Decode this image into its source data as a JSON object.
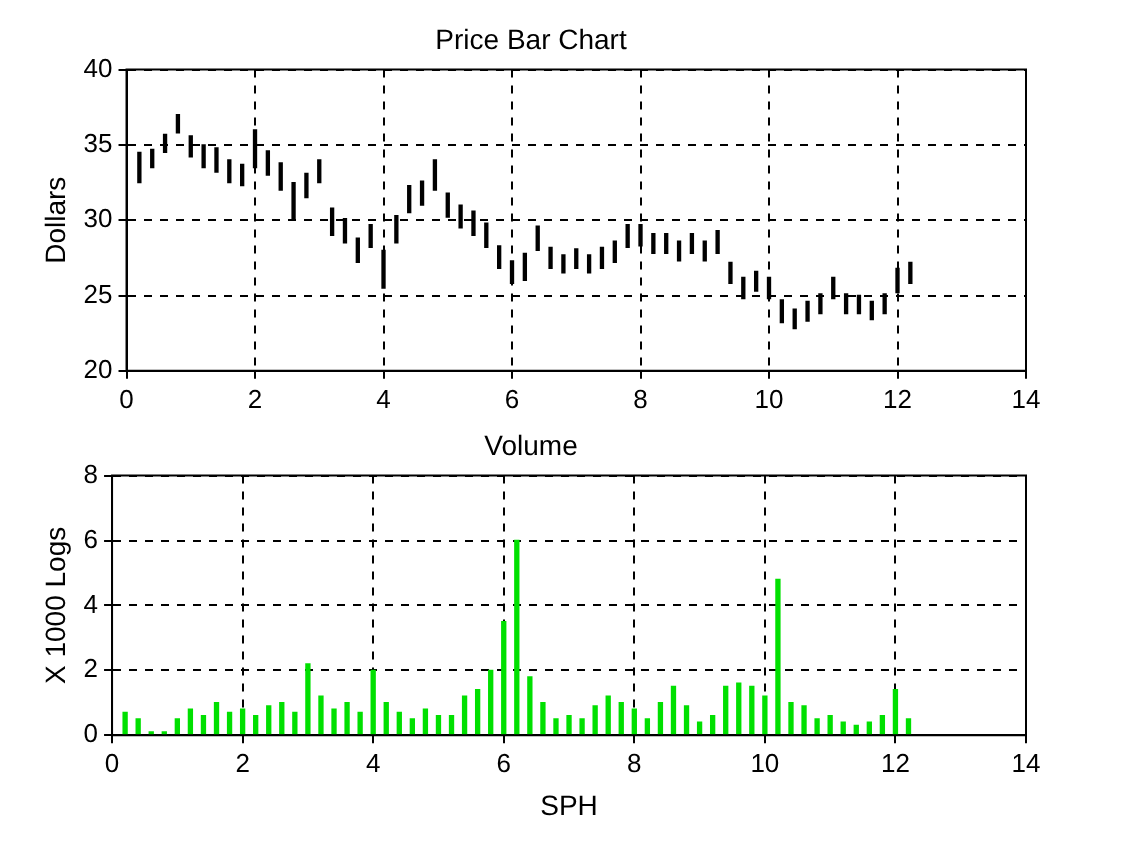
{
  "chart_data": [
    {
      "type": "bar",
      "title": "Price Bar Chart",
      "ylabel": "Dollars",
      "color": "#000000",
      "x": [
        0.2,
        0.4,
        0.6,
        0.8,
        1.0,
        1.2,
        1.4,
        1.6,
        1.8,
        2.0,
        2.2,
        2.4,
        2.6,
        2.8,
        3.0,
        3.2,
        3.4,
        3.6,
        3.8,
        4.0,
        4.2,
        4.4,
        4.6,
        4.8,
        5.0,
        5.2,
        5.4,
        5.6,
        5.8,
        6.0,
        6.2,
        6.4,
        6.6,
        6.8,
        7.0,
        7.2,
        7.4,
        7.6,
        7.8,
        8.0,
        8.2,
        8.4,
        8.6,
        8.8,
        9.0,
        9.2,
        9.4,
        9.6,
        9.8,
        10.0,
        10.2,
        10.4,
        10.6,
        10.8,
        11.0,
        11.2,
        11.4,
        11.6,
        11.8,
        12.0,
        12.2
      ],
      "base": [
        32.5,
        33.5,
        34.5,
        35.8,
        34.2,
        33.5,
        33.2,
        32.5,
        32.3,
        33.5,
        33.0,
        32.0,
        30.0,
        31.5,
        32.5,
        29.0,
        28.5,
        27.2,
        28.2,
        25.5,
        28.5,
        30.5,
        31.0,
        32.0,
        30.2,
        29.5,
        29.0,
        28.2,
        26.8,
        25.8,
        26.0,
        28.0,
        26.8,
        26.5,
        26.8,
        26.5,
        26.8,
        27.2,
        28.2,
        28.3,
        27.8,
        27.8,
        27.3,
        27.8,
        27.3,
        27.8,
        25.8,
        24.8,
        25.3,
        24.8,
        23.2,
        22.8,
        23.3,
        23.8,
        24.8,
        23.8,
        23.8,
        23.4,
        23.8,
        25.2,
        25.8
      ],
      "values": [
        2.0,
        1.2,
        1.2,
        1.2,
        1.4,
        1.5,
        1.6,
        1.5,
        1.4,
        2.5,
        1.6,
        1.8,
        2.5,
        1.6,
        1.5,
        1.8,
        1.6,
        1.6,
        1.5,
        2.5,
        1.8,
        1.8,
        1.6,
        2.0,
        1.6,
        1.5,
        1.6,
        1.6,
        1.5,
        1.5,
        1.8,
        1.6,
        1.4,
        1.2,
        1.3,
        1.2,
        1.4,
        1.4,
        1.5,
        1.4,
        1.3,
        1.3,
        1.3,
        1.3,
        1.3,
        1.5,
        1.4,
        1.4,
        1.3,
        1.4,
        1.5,
        1.3,
        1.3,
        1.3,
        1.4,
        1.3,
        1.2,
        1.2,
        1.3,
        1.6,
        1.4
      ],
      "xlim": [
        0,
        14
      ],
      "xticks": [
        0,
        2,
        4,
        6,
        8,
        10,
        12,
        14
      ],
      "ylim": [
        20,
        40
      ],
      "yticks": [
        20,
        25,
        30,
        35,
        40
      ],
      "grid": true,
      "legend": false
    },
    {
      "type": "bar",
      "title": "Volume",
      "xlabel": "SPH",
      "ylabel": "X 1000 Logs",
      "color": "#00e000",
      "x": [
        0.2,
        0.4,
        0.6,
        0.8,
        1.0,
        1.2,
        1.4,
        1.6,
        1.8,
        2.0,
        2.2,
        2.4,
        2.6,
        2.8,
        3.0,
        3.2,
        3.4,
        3.6,
        3.8,
        4.0,
        4.2,
        4.4,
        4.6,
        4.8,
        5.0,
        5.2,
        5.4,
        5.6,
        5.8,
        6.0,
        6.2,
        6.4,
        6.6,
        6.8,
        7.0,
        7.2,
        7.4,
        7.6,
        7.8,
        8.0,
        8.2,
        8.4,
        8.6,
        8.8,
        9.0,
        9.2,
        9.4,
        9.6,
        9.8,
        10.0,
        10.2,
        10.4,
        10.6,
        10.8,
        11.0,
        11.2,
        11.4,
        11.6,
        11.8,
        12.0,
        12.2
      ],
      "values": [
        0.7,
        0.5,
        0.1,
        0.1,
        0.5,
        0.8,
        0.6,
        1.0,
        0.7,
        0.8,
        0.6,
        0.9,
        1.0,
        0.7,
        2.2,
        1.2,
        0.8,
        1.0,
        0.7,
        2.0,
        1.0,
        0.7,
        0.5,
        0.8,
        0.6,
        0.6,
        1.2,
        1.4,
        2.0,
        3.5,
        6.0,
        1.8,
        1.0,
        0.5,
        0.6,
        0.5,
        0.9,
        1.2,
        1.0,
        0.8,
        0.5,
        1.0,
        1.5,
        0.9,
        0.4,
        0.6,
        1.5,
        1.6,
        1.5,
        1.2,
        4.8,
        1.0,
        0.9,
        0.5,
        0.6,
        0.4,
        0.3,
        0.4,
        0.6,
        1.4,
        0.5
      ],
      "xlim": [
        0,
        14
      ],
      "xticks": [
        0,
        2,
        4,
        6,
        8,
        10,
        12,
        14
      ],
      "ylim": [
        0,
        8
      ],
      "yticks": [
        0,
        2,
        4,
        6,
        8
      ],
      "grid": true,
      "legend": false
    }
  ]
}
